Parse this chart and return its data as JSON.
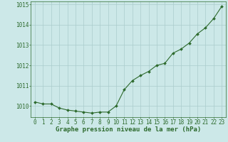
{
  "x": [
    0,
    1,
    2,
    3,
    4,
    5,
    6,
    7,
    8,
    9,
    10,
    11,
    12,
    13,
    14,
    15,
    16,
    17,
    18,
    19,
    20,
    21,
    22,
    23
  ],
  "y": [
    1010.2,
    1010.1,
    1010.1,
    1009.9,
    1009.8,
    1009.75,
    1009.7,
    1009.65,
    1009.7,
    1009.7,
    1010.0,
    1010.8,
    1011.25,
    1011.5,
    1011.7,
    1012.0,
    1012.1,
    1012.6,
    1012.8,
    1013.1,
    1013.55,
    1013.85,
    1014.3,
    1014.9
  ],
  "xlim": [
    -0.5,
    23.5
  ],
  "ylim": [
    1009.45,
    1015.15
  ],
  "yticks": [
    1010,
    1011,
    1012,
    1013,
    1014,
    1015
  ],
  "xticks": [
    0,
    1,
    2,
    3,
    4,
    5,
    6,
    7,
    8,
    9,
    10,
    11,
    12,
    13,
    14,
    15,
    16,
    17,
    18,
    19,
    20,
    21,
    22,
    23
  ],
  "xlabel": "Graphe pression niveau de la mer (hPa)",
  "line_color": "#2d6a2d",
  "marker": "D",
  "marker_size": 2.0,
  "line_width": 0.8,
  "bg_color": "#cce8e8",
  "grid_color": "#aacccc",
  "axis_color": "#2d6a2d",
  "tick_label_color": "#2d6a2d",
  "xlabel_color": "#2d6a2d",
  "xlabel_fontsize": 6.5,
  "tick_fontsize": 5.5
}
